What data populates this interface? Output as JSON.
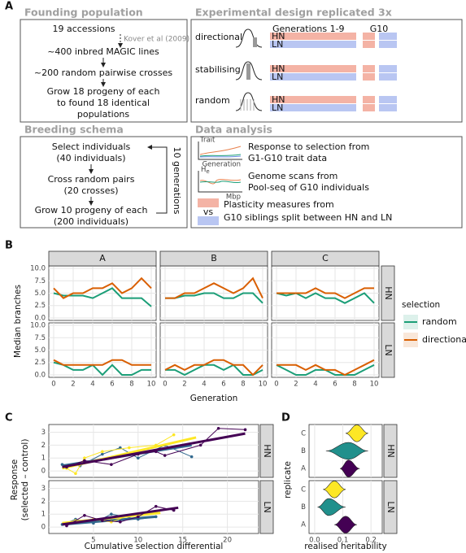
{
  "panel_labels": [
    "A",
    "B",
    "C",
    "D"
  ],
  "founding": {
    "title": "Founding population",
    "lines": [
      "19 accessions",
      "Kover et al (2009)",
      "~400 inbred MAGIC lines",
      "~200 random pairwise crosses",
      "Grow 18 progeny of each",
      "to found 18 identical",
      "populations"
    ]
  },
  "design": {
    "title": "Experimental design replicated 3x",
    "generations": "Generations 1-9",
    "final": "G10",
    "rows": [
      "directional",
      "stabilising",
      "random"
    ],
    "treatments": [
      "HN",
      "LN"
    ]
  },
  "breeding": {
    "title": "Breeding schema",
    "lines": [
      "Select individuals",
      "(40 individuals)",
      "Cross random pairs",
      "(20 crosses)",
      "Grow 10 progeny of each",
      "(200 individuals)"
    ],
    "loop": "10 generations"
  },
  "analysis": {
    "title": "Data analysis",
    "trait_y": "Trait",
    "trait_x": "Generation",
    "scan_y": [
      "H",
      "e"
    ],
    "scan_x": "Mbp",
    "vs": "vs",
    "items": [
      "Response to selection from",
      "G1-G10 trait data",
      "Genome scans from",
      "Pool-seq of G10 individuals",
      "Plasticity measures from",
      "G10 siblings split between HN and LN"
    ]
  },
  "chart_data": [
    {
      "type": "line",
      "ylabel": "Median branches",
      "xlabel": "Generation",
      "legend_title": "selection",
      "columns": [
        "A",
        "B",
        "C"
      ],
      "rows": [
        "HN",
        "LN"
      ],
      "x": [
        0,
        1,
        2,
        3,
        4,
        5,
        6,
        7,
        8,
        9,
        10
      ],
      "xlim": [
        -0.5,
        10.5
      ],
      "xticks": [
        0,
        2,
        4,
        6,
        8,
        10
      ],
      "ylim": [
        -0.5,
        10.5
      ],
      "yticks": [
        {
          "value": 0,
          "label": "0.0"
        },
        2.5,
        {
          "value": 5,
          "label": "5.0"
        },
        7.5,
        {
          "value": 10,
          "label": "10.0"
        }
      ],
      "grid": true,
      "series": [
        {
          "name": "random",
          "color": "#1b9e77",
          "values": [
            [
              [
                5,
                4.5,
                4.5,
                4.5,
                4,
                5,
                6,
                4,
                4,
                4,
                2.3
              ],
              [
                4,
                4,
                4.5,
                4.5,
                5,
                5,
                4,
                4,
                5,
                5,
                3
              ],
              [
                5,
                4.5,
                5,
                4,
                5,
                4,
                4,
                3,
                4,
                5,
                3
              ]
            ],
            [
              [
                2.5,
                2,
                1,
                1,
                2,
                0,
                2,
                0,
                0,
                1,
                1
              ],
              [
                1,
                1,
                0,
                1,
                2,
                2,
                1,
                2,
                0,
                0,
                1
              ],
              [
                2,
                1,
                0,
                0,
                1,
                1,
                0,
                0,
                0,
                1,
                2
              ]
            ]
          ]
        },
        {
          "name": "directional",
          "color": "#d95f02",
          "values": [
            [
              [
                6,
                4,
                5,
                5,
                6,
                6,
                7,
                5,
                6,
                8,
                6
              ],
              [
                4,
                4,
                5,
                5,
                6,
                7,
                6,
                5,
                6,
                8,
                4
              ],
              [
                5,
                5,
                5,
                5,
                6,
                5,
                5,
                4,
                5,
                6,
                6
              ]
            ],
            [
              [
                3,
                2,
                2,
                2,
                2,
                2,
                3,
                3,
                2,
                2,
                2
              ],
              [
                1,
                2,
                1,
                2,
                2,
                3,
                3,
                2,
                2,
                0,
                2
              ],
              [
                2,
                2,
                2,
                1,
                2,
                1,
                1,
                0,
                1,
                2,
                3
              ]
            ]
          ]
        }
      ]
    },
    {
      "type": "line",
      "xlabel": "Cumulative selection differential",
      "ylabel": [
        "Response",
        "(selected – control)"
      ],
      "rows": [
        "HN",
        "LN"
      ],
      "xlim": [
        0,
        23.5
      ],
      "xticks": [
        5,
        10,
        15,
        20
      ],
      "ylim": [
        -0.5,
        3.6
      ],
      "yticks": [
        0,
        1,
        2,
        3
      ],
      "grid": true,
      "series": [
        {
          "color": "#31688e",
          "x": [
            [
              1.5,
              3.5,
              6,
              8,
              10,
              13,
              16
            ],
            [
              1.5,
              3,
              5,
              7,
              10,
              12
            ]
          ],
          "values": [
            [
              0.5,
              0.4,
              1.3,
              1.8,
              1.0,
              2.0,
              1.1
            ],
            [
              0.2,
              0.6,
              0.3,
              1.0,
              0.6,
              0.8
            ]
          ],
          "fit_x": [
            [
              1.5,
              16
            ],
            [
              1.5,
              12
            ]
          ],
          "fit_y": [
            [
              0.4,
              2.0
            ],
            [
              0.2,
              0.8
            ]
          ]
        },
        {
          "color": "#fde725",
          "x": [
            [
              2,
              3,
              4,
              6,
              9,
              12,
              14
            ],
            [
              2,
              3,
              5,
              7,
              9,
              12
            ]
          ],
          "values": [
            [
              0.2,
              -0.2,
              1.0,
              1.5,
              1.8,
              2.0,
              2.8
            ],
            [
              0.3,
              0.5,
              0.6,
              0.4,
              0.9,
              1.1
            ]
          ],
          "fit_x": [
            [
              1.5,
              16.5
            ],
            [
              1.5,
              12.5
            ]
          ],
          "fit_y": [
            [
              0.2,
              2.6
            ],
            [
              0.3,
              1.1
            ]
          ]
        },
        {
          "color": "#440154",
          "x": [
            [
              2,
              4,
              7,
              10,
              12,
              13,
              17,
              19,
              22
            ],
            [
              2,
              4,
              6,
              8,
              10,
              12,
              14
            ]
          ],
          "values": [
            [
              0.3,
              0.8,
              0.5,
              1.3,
              1.5,
              1.2,
              2.0,
              3.3,
              3.2
            ],
            [
              0.1,
              0.9,
              0.5,
              0.4,
              0.8,
              1.6,
              1.3
            ]
          ],
          "fit_x": [
            [
              1.5,
              22
            ],
            [
              1.5,
              14.5
            ]
          ],
          "fit_y": [
            [
              0.3,
              2.9
            ],
            [
              0.2,
              1.5
            ]
          ]
        }
      ]
    },
    {
      "type": "violin",
      "xlabel": "realised heritability",
      "ylabel": "replicate",
      "rows": [
        "HN",
        "LN"
      ],
      "categories": [
        "C",
        "B",
        "A"
      ],
      "colors": [
        "#fde725",
        "#21908c",
        "#440154"
      ],
      "xlim": [
        -0.02,
        0.24
      ],
      "xticks": [
        {
          "value": 0,
          "label": "0.0"
        },
        0.1,
        0.2
      ],
      "grid": true,
      "violins": [
        [
          {
            "min": 0.11,
            "mode": 0.15,
            "max": 0.19
          },
          {
            "min": 0.04,
            "mode": 0.12,
            "max": 0.19
          },
          {
            "min": 0.09,
            "mode": 0.12,
            "max": 0.16
          }
        ],
        [
          {
            "min": 0.03,
            "mode": 0.07,
            "max": 0.11
          },
          {
            "min": 0.01,
            "mode": 0.05,
            "max": 0.11
          },
          {
            "min": 0.07,
            "mode": 0.11,
            "max": 0.15
          }
        ]
      ]
    }
  ]
}
